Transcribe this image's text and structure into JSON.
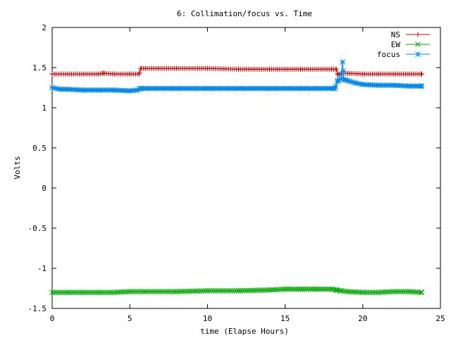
{
  "chart_data": {
    "type": "line",
    "title": "6: Collimation/focus vs. Time",
    "xlabel": "time (Elapse Hours)",
    "ylabel": "Volts",
    "xlim": [
      0,
      25
    ],
    "ylim": [
      -1.5,
      2
    ],
    "xticks": [
      "0",
      "5",
      "10",
      "15",
      "20",
      "25"
    ],
    "yticks": [
      "-1.5",
      "-1",
      "-0.5",
      "0",
      "0.5",
      "1",
      "1.5",
      "2"
    ],
    "grid": false,
    "legend_position": "top-right",
    "series": [
      {
        "name": "NS",
        "color": "#cc0000",
        "marker": "plus",
        "x": [
          0,
          1,
          2,
          3,
          3.3,
          4,
          5,
          5.6,
          5.7,
          6,
          8,
          10,
          12,
          14,
          16,
          18,
          18.3,
          18.4,
          18.6,
          19,
          20,
          21,
          22,
          23,
          23.8
        ],
        "y": [
          1.42,
          1.42,
          1.42,
          1.42,
          1.43,
          1.42,
          1.42,
          1.42,
          1.49,
          1.49,
          1.49,
          1.49,
          1.48,
          1.48,
          1.48,
          1.48,
          1.48,
          1.41,
          1.43,
          1.43,
          1.42,
          1.42,
          1.42,
          1.42,
          1.42
        ]
      },
      {
        "name": "EW",
        "color": "#00aa00",
        "marker": "cross",
        "x": [
          0,
          1,
          2,
          3,
          4,
          5,
          6,
          8,
          10,
          12,
          14,
          15,
          16,
          17,
          18,
          18.3,
          18.6,
          19,
          20,
          21,
          22,
          23,
          23.8
        ],
        "y": [
          -1.3,
          -1.3,
          -1.3,
          -1.3,
          -1.3,
          -1.29,
          -1.29,
          -1.29,
          -1.28,
          -1.28,
          -1.27,
          -1.26,
          -1.26,
          -1.26,
          -1.26,
          -1.27,
          -1.28,
          -1.29,
          -1.3,
          -1.3,
          -1.29,
          -1.29,
          -1.3
        ]
      },
      {
        "name": "focus",
        "color": "#0088ee",
        "marker": "star",
        "x": [
          0,
          0.5,
          1,
          2,
          3,
          4,
          5,
          5.5,
          5.7,
          6,
          8,
          10,
          12,
          14,
          16,
          18,
          18.2,
          18.4,
          18.6,
          18.7,
          18.8,
          19,
          19.5,
          20,
          21,
          22,
          23,
          23.8
        ],
        "y": [
          1.25,
          1.23,
          1.23,
          1.22,
          1.22,
          1.22,
          1.21,
          1.22,
          1.24,
          1.24,
          1.24,
          1.24,
          1.24,
          1.24,
          1.24,
          1.24,
          1.24,
          1.34,
          1.36,
          1.57,
          1.35,
          1.34,
          1.31,
          1.29,
          1.28,
          1.28,
          1.27,
          1.27
        ]
      }
    ]
  }
}
